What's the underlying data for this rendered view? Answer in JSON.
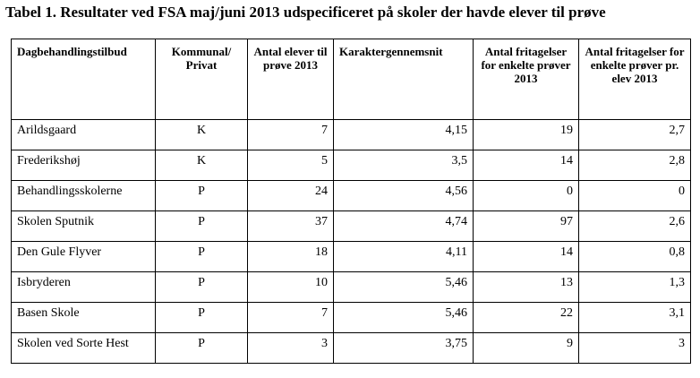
{
  "caption": "Tabel 1. Resultater ved FSA maj/juni 2013 udspecificeret på skoler der havde elever til prøve",
  "headers": [
    "Dagbehandlingstilbud",
    "Kommunal/ Privat",
    "Antal elever til prøve 2013",
    "Karaktergennemsnit",
    "Antal fritagelser for enkelte prøver 2013",
    "Antal fritagelser for enkelte prøver pr. elev 2013"
  ],
  "rows": [
    [
      "Arildsgaard",
      "K",
      "7",
      "4,15",
      "19",
      "2,7"
    ],
    [
      "Frederikshøj",
      "K",
      "5",
      "3,5",
      "14",
      "2,8"
    ],
    [
      "Behandlingsskolerne",
      "P",
      "24",
      "4,56",
      "0",
      "0"
    ],
    [
      "Skolen Sputnik",
      "P",
      "37",
      "4,74",
      "97",
      "2,6"
    ],
    [
      "Den Gule Flyver",
      "P",
      "18",
      "4,11",
      "14",
      "0,8"
    ],
    [
      "Isbryderen",
      "P",
      "10",
      "5,46",
      "13",
      "1,3"
    ],
    [
      "Basen Skole",
      "P",
      "7",
      "5,46",
      "22",
      "3,1"
    ],
    [
      "Skolen ved Sorte Hest",
      "P",
      "3",
      "3,75",
      "9",
      "3"
    ]
  ]
}
